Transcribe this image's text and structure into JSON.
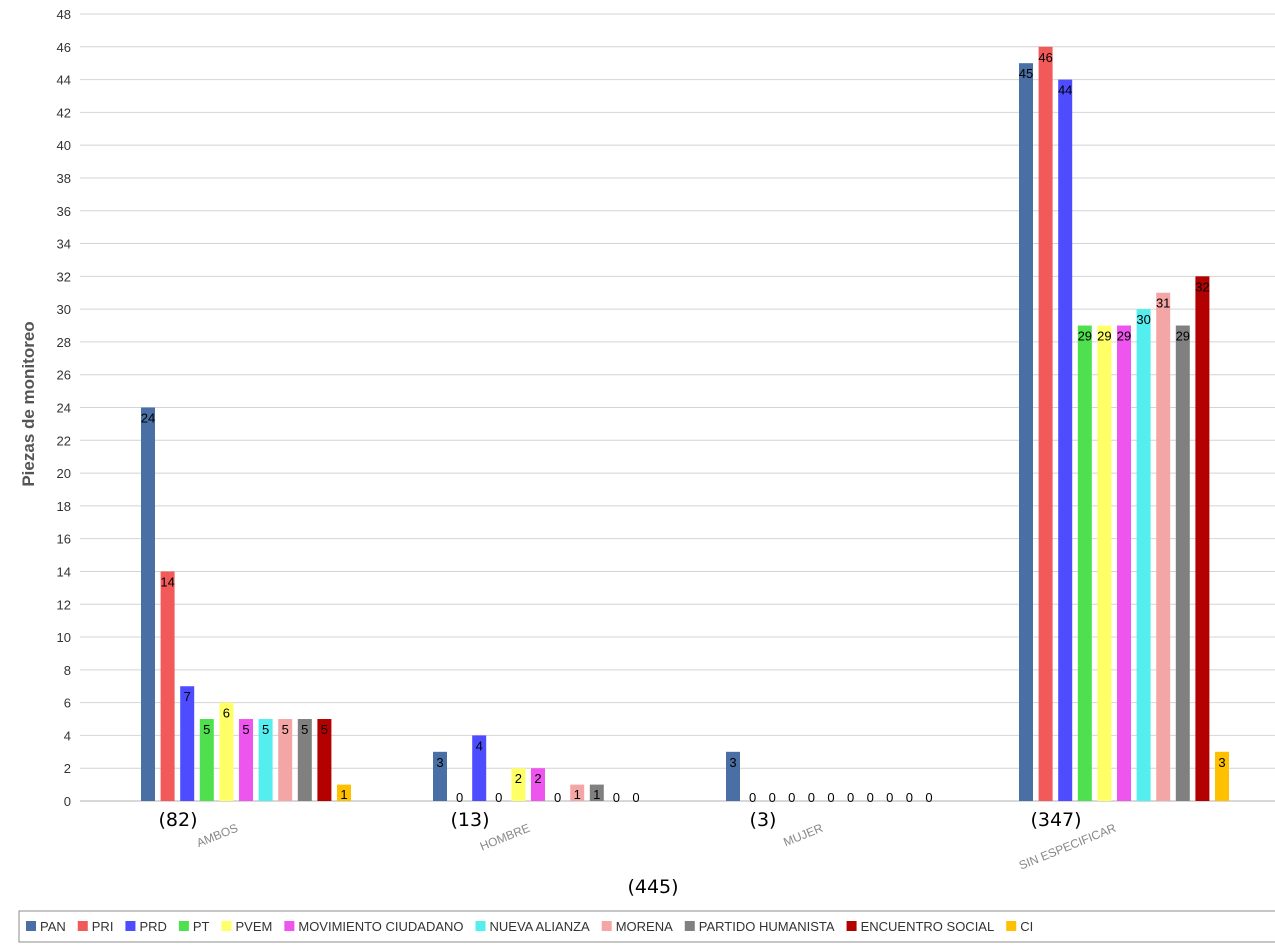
{
  "chart_data": {
    "type": "bar",
    "title": "",
    "xlabel": "",
    "ylabel": "Piezas de monitoreo",
    "ylim": [
      0,
      48
    ],
    "ytick_step": 2,
    "grid": true,
    "legend_position": "bottom",
    "categories": [
      "AMBOS",
      "HOMBRE",
      "MUJER",
      "SIN ESPECIFICAR"
    ],
    "category_totals": [
      "(82)",
      "(13)",
      "(3)",
      "(347)"
    ],
    "grand_total": "(445)",
    "series": [
      {
        "name": "PAN",
        "color": "#4a6fa5",
        "values": [
          24,
          3,
          3,
          45
        ]
      },
      {
        "name": "PRI",
        "color": "#f25a5a",
        "values": [
          14,
          0,
          0,
          46
        ]
      },
      {
        "name": "PRD",
        "color": "#4d4dff",
        "values": [
          7,
          4,
          0,
          44
        ]
      },
      {
        "name": "PT",
        "color": "#4ee04e",
        "values": [
          5,
          0,
          0,
          29
        ]
      },
      {
        "name": "PVEM",
        "color": "#ffff66",
        "values": [
          6,
          2,
          0,
          29
        ]
      },
      {
        "name": "MOVIMIENTO CIUDADANO",
        "color": "#ee55ee",
        "values": [
          5,
          2,
          0,
          29
        ]
      },
      {
        "name": "NUEVA ALIANZA",
        "color": "#55eeee",
        "values": [
          5,
          0,
          0,
          30
        ]
      },
      {
        "name": "MORENA",
        "color": "#f4a6a6",
        "values": [
          5,
          1,
          0,
          31
        ]
      },
      {
        "name": "PARTIDO HUMANISTA",
        "color": "#808080",
        "values": [
          5,
          1,
          0,
          29
        ]
      },
      {
        "name": "ENCUENTRO SOCIAL",
        "color": "#b30000",
        "values": [
          5,
          0,
          0,
          32
        ]
      },
      {
        "name": "CI",
        "color": "#ffc000",
        "values": [
          1,
          0,
          0,
          3
        ]
      }
    ]
  }
}
